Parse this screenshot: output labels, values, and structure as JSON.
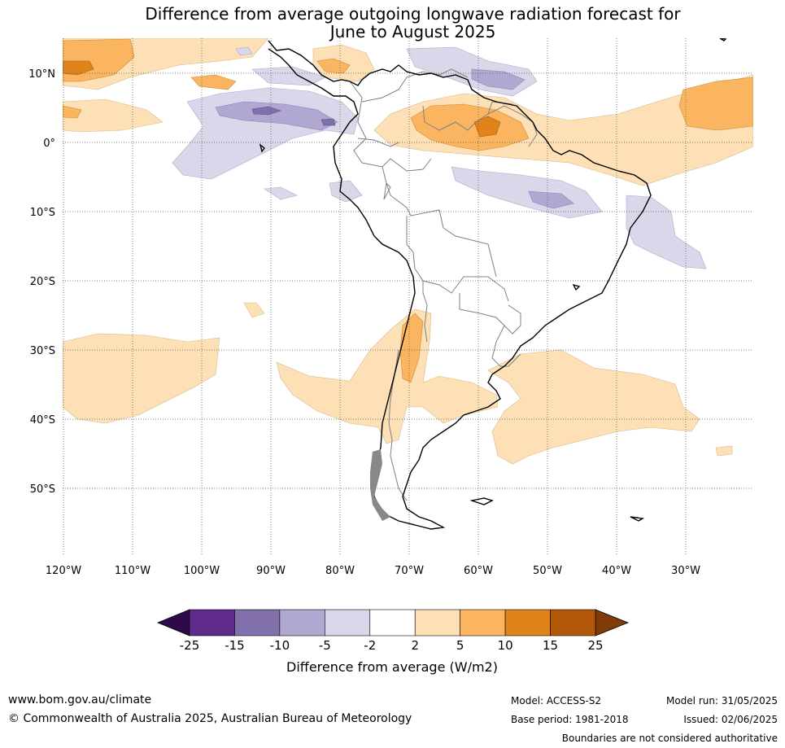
{
  "title": {
    "line1": "Difference from average outgoing longwave radiation forecast for",
    "line2": "June to August 2025"
  },
  "map": {
    "lat_labels": [
      "10°N",
      "0°",
      "10°S",
      "20°S",
      "30°S",
      "40°S",
      "50°S"
    ],
    "lon_labels": [
      "120°W",
      "110°W",
      "100°W",
      "90°W",
      "80°W",
      "70°W",
      "60°W",
      "50°W",
      "40°W",
      "30°W"
    ],
    "grid": "dotted"
  },
  "colorbar": {
    "ticks": [
      "-25",
      "-15",
      "-10",
      "-5",
      "-2",
      "2",
      "5",
      "10",
      "15",
      "25"
    ],
    "colors": [
      "#5e2a8c",
      "#8270ad",
      "#b1a8d1",
      "#d9d8ea",
      "#ffffff",
      "#fde0b5",
      "#fbb561",
      "#e1831b",
      "#b35809"
    ],
    "under_color": "#2e0a4a",
    "over_color": "#7f3b08",
    "label": "Difference from average (W/m2)"
  },
  "footer": {
    "website": "www.bom.gov.au/climate",
    "copyright": "© Commonwealth of Australia 2025, Australian Bureau of Meteorology",
    "model": "Model: ACCESS-S2",
    "base_period": "Base period: 1981-2018",
    "model_run": "Model run: 31/05/2025",
    "issued": "Issued: 02/06/2025",
    "boundaries_note": "Boundaries are not considered authoritative"
  }
}
